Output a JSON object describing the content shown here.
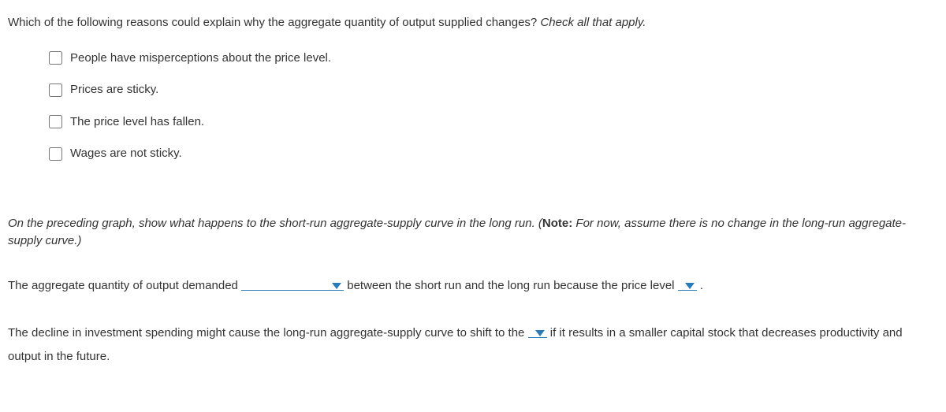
{
  "question": {
    "prompt_main": "Which of the following reasons could explain why the aggregate quantity of output supplied changes?",
    "prompt_hint": "Check all that apply.",
    "options": [
      "People have misperceptions about the price level.",
      "Prices are sticky.",
      "The price level has fallen.",
      "Wages are not sticky."
    ]
  },
  "instruction": {
    "text_before_note": "On the preceding graph, show what happens to the short-run aggregate-supply curve in the long run. (",
    "note_label": "Note:",
    "note_text": " For now, assume there is no change in the long-run aggregate-supply curve.)"
  },
  "fill1": {
    "before": "The aggregate quantity of output demanded ",
    "middle": " between the short run and the long run because the price level ",
    "after": " ."
  },
  "fill2": {
    "before": "The decline in investment spending might cause the long-run aggregate-supply curve to shift to the ",
    "after": " if it results in a smaller capital stock that decreases productivity and output in the future."
  },
  "colors": {
    "text": "#333333",
    "link_blue": "#2b7bb9",
    "background": "#ffffff"
  }
}
